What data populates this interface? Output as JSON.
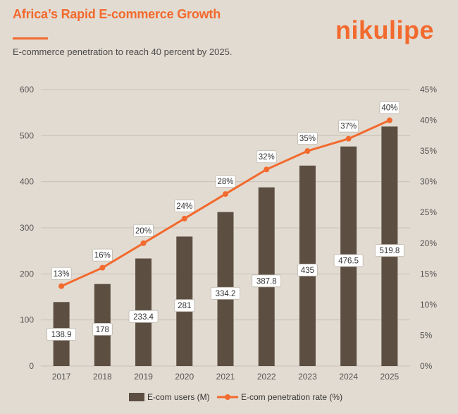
{
  "header": {
    "title": "Africa’s Rapid E-commerce Growth",
    "subtitle": "E-commerce penetration to reach 40 percent by 2025.",
    "logo": "nikulipe"
  },
  "colors": {
    "accent": "#f26a2e",
    "bar": "#5c4f42",
    "background": "#e2dbd1"
  },
  "chart_data": {
    "type": "bar",
    "categories": [
      "2017",
      "2018",
      "2019",
      "2020",
      "2021",
      "2022",
      "2023",
      "2024",
      "2025"
    ],
    "series": [
      {
        "name": "E-com users (M)",
        "type": "bar",
        "axis": "left",
        "values": [
          138.9,
          178,
          233.4,
          281,
          334.2,
          387.8,
          435,
          476.5,
          519.8
        ],
        "labels": [
          "138.9",
          "178",
          "233.4",
          "281",
          "334.2",
          "387.8",
          "435",
          "476.5",
          "519.8"
        ]
      },
      {
        "name": "E-com penetration rate (%)",
        "type": "line",
        "axis": "right",
        "values": [
          13,
          16,
          20,
          24,
          28,
          32,
          35,
          37,
          40
        ],
        "labels": [
          "13%",
          "16%",
          "20%",
          "24%",
          "28%",
          "32%",
          "35%",
          "37%",
          "40%"
        ]
      }
    ],
    "ylim_left": [
      0,
      600
    ],
    "left_ticks": [
      "0",
      "100",
      "200",
      "300",
      "400",
      "500",
      "600"
    ],
    "ylim_right": [
      0,
      45
    ],
    "right_ticks": [
      "0%",
      "5%",
      "10%",
      "15%",
      "20%",
      "25%",
      "30%",
      "35%",
      "40%",
      "45%"
    ],
    "grid": true,
    "legend_position": "bottom"
  }
}
